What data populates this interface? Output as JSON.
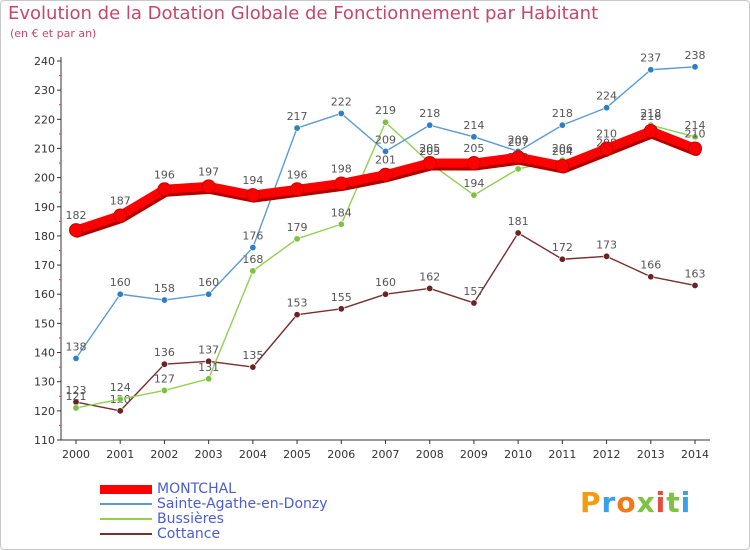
{
  "header": {
    "title": "Evolution de la Dotation Globale de Fonctionnement par Habitant",
    "subtitle": "(en € et par an)"
  },
  "colors": {
    "title": "#c8456b",
    "legend_text": "#4a5dd6",
    "axis": "#333333",
    "grid": "#ffffff",
    "tick_marks": "#d9335c"
  },
  "logo": {
    "text": "Proxiti",
    "letter_colors": [
      "#f39c12",
      "#3aa0e8",
      "#f07a1a",
      "#7dc443",
      "#e84c3d",
      "#7dc443",
      "#3aa0e8"
    ]
  },
  "chart_data": {
    "type": "line",
    "x": [
      "2000",
      "2001",
      "2002",
      "2003",
      "2004",
      "2005",
      "2006",
      "2007",
      "2008",
      "2009",
      "2010",
      "2011",
      "2012",
      "2013",
      "2014"
    ],
    "ylim": [
      110,
      240
    ],
    "yticks": [
      110,
      120,
      130,
      140,
      150,
      160,
      170,
      180,
      190,
      200,
      210,
      220,
      230,
      240
    ],
    "grid": false,
    "legend_position": "bottom-left",
    "series": [
      {
        "name": "MONTCHAL",
        "color": "#ff0000",
        "marker_color": "#ff0000",
        "label_color": "#555555",
        "emphasis": true,
        "values": [
          182,
          187,
          196,
          197,
          194,
          196,
          198,
          201,
          205,
          205,
          207,
          204,
          210,
          216,
          210
        ]
      },
      {
        "name": "Sainte-Agathe-en-Donzy",
        "color": "#5b9bd5",
        "marker_color": "#2f7fc6",
        "label_color": "#555555",
        "emphasis": false,
        "values": [
          138,
          160,
          158,
          160,
          176,
          217,
          222,
          209,
          218,
          214,
          209,
          218,
          224,
          237,
          238
        ]
      },
      {
        "name": "Bussières",
        "color": "#8fd14f",
        "marker_color": "#7cc242",
        "label_color": "#555555",
        "emphasis": false,
        "values": [
          121,
          124,
          127,
          131,
          168,
          179,
          184,
          219,
          205,
          194,
          203,
          206,
          208,
          218,
          214
        ]
      },
      {
        "name": "Cottance",
        "color": "#7a2e2e",
        "marker_color": "#6b2222",
        "label_color": "#555555",
        "emphasis": false,
        "values": [
          123,
          120,
          136,
          137,
          135,
          153,
          155,
          160,
          162,
          157,
          181,
          172,
          173,
          166,
          163
        ]
      }
    ]
  }
}
